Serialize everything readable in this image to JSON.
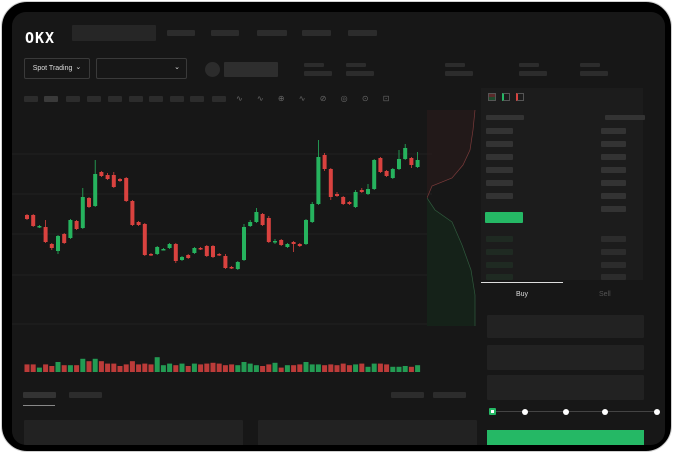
{
  "brand": {
    "logo": "OKX"
  },
  "toolbar": {
    "market_select": "Spot Trading",
    "chevron": "⌄"
  },
  "trade": {
    "tabs": [
      "Buy",
      "Sell"
    ],
    "active_tab": "Buy",
    "slider_level": 0,
    "slider_stops": 5
  },
  "colors": {
    "up": "#26b35e",
    "down": "#d9423f",
    "background": "#171717",
    "accent": "#25b865"
  },
  "chart_data": {
    "type": "candlestick",
    "note_axes": "unlabeled",
    "candles": [
      [
        97,
        93,
        98,
        92
      ],
      [
        97,
        86,
        98,
        85
      ],
      [
        85,
        86,
        87,
        84
      ],
      [
        85,
        70,
        92,
        69
      ],
      [
        68,
        64,
        69,
        62
      ],
      [
        61,
        76,
        77,
        58
      ],
      [
        78,
        69,
        79,
        68
      ],
      [
        74,
        92,
        93,
        73
      ],
      [
        91,
        83,
        92,
        82
      ],
      [
        84,
        115,
        124,
        83
      ],
      [
        114,
        105,
        115,
        104
      ],
      [
        106,
        138,
        152,
        105
      ],
      [
        140,
        136,
        141,
        135
      ],
      [
        137,
        133,
        139,
        132
      ],
      [
        137,
        125,
        140,
        124
      ],
      [
        133,
        131,
        134,
        130
      ],
      [
        134,
        111,
        135,
        110
      ],
      [
        111,
        87,
        112,
        86
      ],
      [
        90,
        87,
        91,
        86
      ],
      [
        88,
        57,
        89,
        56
      ],
      [
        58,
        57,
        59,
        56
      ],
      [
        58,
        65,
        66,
        57
      ],
      [
        63,
        63,
        64,
        62
      ],
      [
        64,
        68,
        69,
        63
      ],
      [
        68,
        51,
        69,
        49
      ],
      [
        52,
        55,
        56,
        51
      ],
      [
        57,
        54,
        58,
        53
      ],
      [
        59,
        64,
        65,
        58
      ],
      [
        64,
        63,
        65,
        62
      ],
      [
        66,
        56,
        67,
        55
      ],
      [
        66,
        55,
        67,
        54
      ],
      [
        58,
        57,
        59,
        56
      ],
      [
        56,
        44,
        58,
        43
      ],
      [
        45,
        44,
        46,
        43
      ],
      [
        43,
        50,
        51,
        42
      ],
      [
        52,
        85,
        88,
        51
      ],
      [
        86,
        90,
        92,
        85
      ],
      [
        90,
        100,
        104,
        89
      ],
      [
        98,
        87,
        99,
        86
      ],
      [
        94,
        70,
        96,
        69
      ],
      [
        70,
        71,
        73,
        68
      ],
      [
        72,
        67,
        73,
        66
      ],
      [
        65,
        68,
        69,
        64
      ],
      [
        70,
        68,
        71,
        60
      ],
      [
        68,
        66,
        69,
        65
      ],
      [
        68,
        92,
        93,
        67
      ],
      [
        90,
        108,
        110,
        89
      ],
      [
        108,
        155,
        172,
        107
      ],
      [
        157,
        143,
        159,
        141
      ],
      [
        143,
        115,
        144,
        112
      ],
      [
        118,
        116,
        120,
        115
      ],
      [
        115,
        108,
        116,
        107
      ],
      [
        110,
        108,
        111,
        107
      ],
      [
        105,
        120,
        122,
        104
      ],
      [
        122,
        120,
        124,
        119
      ],
      [
        118,
        123,
        128,
        117
      ],
      [
        123,
        152,
        153,
        122
      ],
      [
        154,
        140,
        155,
        139
      ],
      [
        141,
        136,
        142,
        135
      ],
      [
        134,
        143,
        144,
        133
      ],
      [
        143,
        153,
        162,
        142
      ],
      [
        153,
        164,
        168,
        152
      ],
      [
        154,
        147,
        155,
        144
      ],
      [
        145,
        152,
        160,
        144
      ]
    ],
    "volumes": [
      12,
      12,
      8,
      12,
      10,
      15,
      11,
      11,
      11,
      19,
      16,
      19,
      16,
      13,
      13,
      10,
      12,
      16,
      12,
      13,
      12,
      21,
      11,
      13,
      11,
      13,
      10,
      13,
      12,
      13,
      14,
      13,
      11,
      12,
      11,
      15,
      13,
      11,
      10,
      12,
      14,
      8,
      11,
      11,
      12,
      15,
      12,
      12,
      11,
      12,
      11,
      13,
      11,
      12,
      13,
      9,
      13,
      13,
      12,
      9,
      9,
      10,
      9,
      11
    ]
  }
}
